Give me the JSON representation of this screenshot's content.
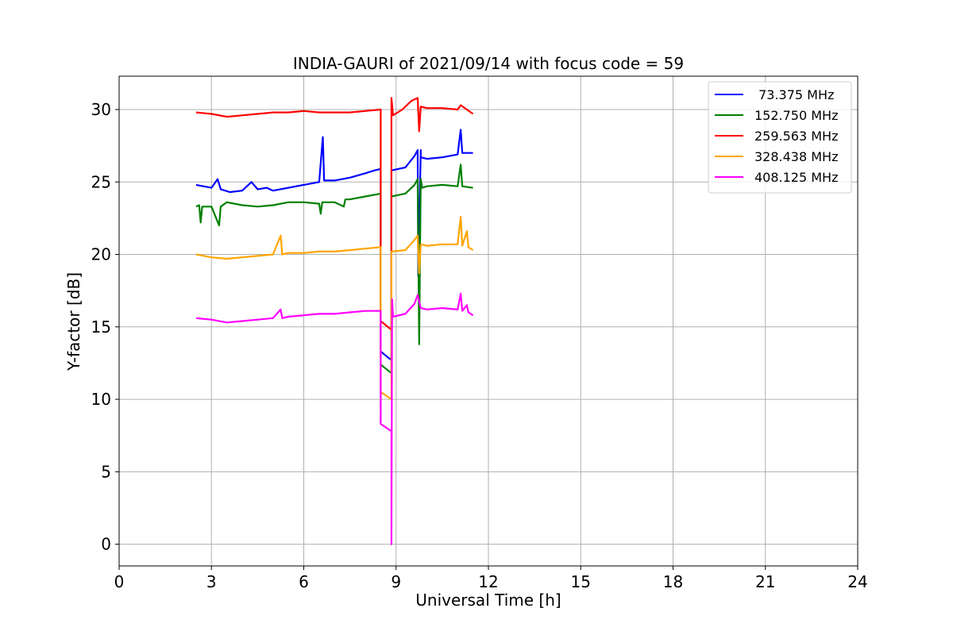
{
  "chart_data": {
    "type": "line",
    "title": "INDIA-GAURI of 2021/09/14 with focus code = 59",
    "xlabel": "Universal Time [h]",
    "ylabel": "Y-factor [dB]",
    "xlim": [
      0,
      24
    ],
    "ylim": [
      -1.5,
      32.3
    ],
    "xticks": [
      0,
      3,
      6,
      9,
      12,
      15,
      18,
      21,
      24
    ],
    "yticks": [
      0,
      5,
      10,
      15,
      20,
      25,
      30
    ],
    "xtick_labels": [
      "0",
      "3",
      "6",
      "9",
      "12",
      "15",
      "18",
      "21",
      "24"
    ],
    "ytick_labels": [
      "0",
      "5",
      "10",
      "15",
      "20",
      "25",
      "30"
    ],
    "grid": true,
    "legend_position": "top-right",
    "series": [
      {
        "name": " 73.375 MHz",
        "color": "#0000ff",
        "points": [
          [
            2.5,
            24.8
          ],
          [
            3.0,
            24.6
          ],
          [
            3.2,
            25.2
          ],
          [
            3.3,
            24.5
          ],
          [
            3.6,
            24.3
          ],
          [
            4.0,
            24.4
          ],
          [
            4.3,
            25.0
          ],
          [
            4.5,
            24.5
          ],
          [
            4.8,
            24.6
          ],
          [
            5.0,
            24.4
          ],
          [
            5.5,
            24.6
          ],
          [
            6.0,
            24.8
          ],
          [
            6.5,
            25.0
          ],
          [
            6.62,
            28.1
          ],
          [
            6.66,
            25.1
          ],
          [
            7.0,
            25.1
          ],
          [
            7.5,
            25.3
          ],
          [
            8.0,
            25.6
          ],
          [
            8.3,
            25.8
          ],
          [
            8.5,
            25.9
          ],
          [
            8.5,
            13.3
          ],
          [
            8.85,
            12.7
          ],
          [
            8.85,
            25.8
          ],
          [
            9.3,
            26.0
          ],
          [
            9.6,
            26.8
          ],
          [
            9.7,
            27.2
          ],
          [
            9.72,
            18.5
          ],
          [
            9.8,
            27.2
          ],
          [
            9.8,
            26.7
          ],
          [
            10.0,
            26.6
          ],
          [
            10.5,
            26.7
          ],
          [
            11.0,
            26.9
          ],
          [
            11.1,
            28.6
          ],
          [
            11.15,
            27.0
          ],
          [
            11.5,
            27.0
          ]
        ]
      },
      {
        "name": "152.750 MHz",
        "color": "#008000",
        "points": [
          [
            2.5,
            23.3
          ],
          [
            2.6,
            23.4
          ],
          [
            2.65,
            22.2
          ],
          [
            2.7,
            23.3
          ],
          [
            3.0,
            23.3
          ],
          [
            3.25,
            22.0
          ],
          [
            3.3,
            23.3
          ],
          [
            3.5,
            23.6
          ],
          [
            4.0,
            23.4
          ],
          [
            4.5,
            23.3
          ],
          [
            5.0,
            23.4
          ],
          [
            5.5,
            23.6
          ],
          [
            6.0,
            23.6
          ],
          [
            6.5,
            23.5
          ],
          [
            6.55,
            22.8
          ],
          [
            6.6,
            23.6
          ],
          [
            7.0,
            23.6
          ],
          [
            7.3,
            23.3
          ],
          [
            7.35,
            23.8
          ],
          [
            7.5,
            23.8
          ],
          [
            8.0,
            24.0
          ],
          [
            8.5,
            24.2
          ],
          [
            8.5,
            12.4
          ],
          [
            8.85,
            11.8
          ],
          [
            8.85,
            24.0
          ],
          [
            9.3,
            24.2
          ],
          [
            9.6,
            24.8
          ],
          [
            9.7,
            25.2
          ],
          [
            9.75,
            13.8
          ],
          [
            9.8,
            25.2
          ],
          [
            9.85,
            24.6
          ],
          [
            10.0,
            24.7
          ],
          [
            10.5,
            24.8
          ],
          [
            11.0,
            24.7
          ],
          [
            11.1,
            26.2
          ],
          [
            11.15,
            24.7
          ],
          [
            11.5,
            24.6
          ]
        ]
      },
      {
        "name": "259.563 MHz",
        "color": "#ff0000",
        "points": [
          [
            2.5,
            29.8
          ],
          [
            3.0,
            29.7
          ],
          [
            3.5,
            29.5
          ],
          [
            4.0,
            29.6
          ],
          [
            4.5,
            29.7
          ],
          [
            5.0,
            29.8
          ],
          [
            5.5,
            29.8
          ],
          [
            6.0,
            29.9
          ],
          [
            6.5,
            29.8
          ],
          [
            7.0,
            29.8
          ],
          [
            7.5,
            29.8
          ],
          [
            8.0,
            29.9
          ],
          [
            8.5,
            30.0
          ],
          [
            8.5,
            15.4
          ],
          [
            8.85,
            14.8
          ],
          [
            8.85,
            30.8
          ],
          [
            8.9,
            29.6
          ],
          [
            9.2,
            30.0
          ],
          [
            9.5,
            30.6
          ],
          [
            9.7,
            30.8
          ],
          [
            9.75,
            28.5
          ],
          [
            9.8,
            30.2
          ],
          [
            10.0,
            30.1
          ],
          [
            10.5,
            30.1
          ],
          [
            11.0,
            30.0
          ],
          [
            11.1,
            30.3
          ],
          [
            11.5,
            29.7
          ]
        ]
      },
      {
        "name": "328.438 MHz",
        "color": "#ffa500",
        "points": [
          [
            2.5,
            20.0
          ],
          [
            3.0,
            19.8
          ],
          [
            3.5,
            19.7
          ],
          [
            4.0,
            19.8
          ],
          [
            4.5,
            19.9
          ],
          [
            5.0,
            20.0
          ],
          [
            5.25,
            21.3
          ],
          [
            5.3,
            20.0
          ],
          [
            5.5,
            20.1
          ],
          [
            6.0,
            20.1
          ],
          [
            6.5,
            20.2
          ],
          [
            7.0,
            20.2
          ],
          [
            7.5,
            20.3
          ],
          [
            8.0,
            20.4
          ],
          [
            8.5,
            20.5
          ],
          [
            8.5,
            10.5
          ],
          [
            8.85,
            10.0
          ],
          [
            8.85,
            20.2
          ],
          [
            9.3,
            20.3
          ],
          [
            9.6,
            21.0
          ],
          [
            9.7,
            21.3
          ],
          [
            9.75,
            18.7
          ],
          [
            9.8,
            20.7
          ],
          [
            10.0,
            20.6
          ],
          [
            10.5,
            20.7
          ],
          [
            11.0,
            20.7
          ],
          [
            11.1,
            22.6
          ],
          [
            11.15,
            20.6
          ],
          [
            11.3,
            21.6
          ],
          [
            11.35,
            20.5
          ],
          [
            11.5,
            20.3
          ]
        ]
      },
      {
        "name": "408.125 MHz",
        "color": "#ff00ff",
        "points": [
          [
            2.5,
            15.6
          ],
          [
            3.0,
            15.5
          ],
          [
            3.5,
            15.3
          ],
          [
            4.0,
            15.4
          ],
          [
            4.5,
            15.5
          ],
          [
            5.0,
            15.6
          ],
          [
            5.25,
            16.2
          ],
          [
            5.3,
            15.6
          ],
          [
            5.5,
            15.7
          ],
          [
            6.0,
            15.8
          ],
          [
            6.5,
            15.9
          ],
          [
            7.0,
            15.9
          ],
          [
            7.5,
            16.0
          ],
          [
            8.0,
            16.1
          ],
          [
            8.5,
            16.1
          ],
          [
            8.5,
            8.3
          ],
          [
            8.85,
            7.8
          ],
          [
            8.85,
            0.0
          ],
          [
            8.87,
            16.9
          ],
          [
            8.9,
            15.7
          ],
          [
            9.3,
            15.9
          ],
          [
            9.6,
            16.6
          ],
          [
            9.7,
            17.2
          ],
          [
            9.8,
            16.3
          ],
          [
            10.0,
            16.2
          ],
          [
            10.5,
            16.3
          ],
          [
            11.0,
            16.2
          ],
          [
            11.1,
            17.3
          ],
          [
            11.15,
            16.1
          ],
          [
            11.3,
            16.5
          ],
          [
            11.35,
            16.0
          ],
          [
            11.5,
            15.8
          ]
        ]
      }
    ]
  }
}
